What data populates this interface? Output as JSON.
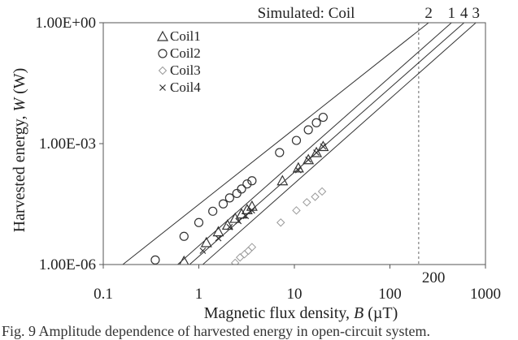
{
  "chart_data": {
    "type": "scatter",
    "x_scale": "log",
    "y_scale": "log",
    "xlim": [
      0.1,
      1000
    ],
    "ylim": [
      1e-06,
      1
    ],
    "xlabel_prefix": "Magnetic flux density, ",
    "xlabel_var": "B",
    "xlabel_unit": " (µT)",
    "ylabel_prefix": "Harvested energy, ",
    "ylabel_var": "W",
    "ylabel_unit": " (W)",
    "x_ticks": [
      "0.1",
      "1",
      "10",
      "100",
      "1000"
    ],
    "y_ticks": [
      "1.00E-06",
      "1.00E-03",
      "1.00E+00"
    ],
    "reference_line": {
      "x": 200,
      "label": "200"
    },
    "simulated_label": "Simulated: Coil",
    "series": [
      {
        "name": "Coil1",
        "marker": "triangle",
        "x": [
          0.7,
          1.2,
          1.6,
          2.0,
          2.4,
          2.8,
          3.2,
          3.6,
          7.5,
          11,
          14,
          17,
          20
        ],
        "y": [
          1.2e-06,
          3.5e-06,
          6.5e-06,
          9.5e-06,
          1.4e-05,
          1.8e-05,
          2.3e-05,
          2.8e-05,
          0.00012,
          0.00025,
          0.0004,
          0.0006,
          0.00085
        ]
      },
      {
        "name": "Coil2",
        "marker": "circle",
        "x": [
          0.35,
          0.7,
          1.0,
          1.4,
          1.8,
          2.1,
          2.5,
          2.8,
          3.2,
          3.6,
          7.0,
          10.5,
          14,
          17,
          20
        ],
        "y": [
          1.3e-06,
          5e-06,
          1.1e-05,
          2.1e-05,
          3.2e-05,
          4.5e-05,
          5.8e-05,
          7.5e-05,
          0.0001,
          0.00012,
          0.0006,
          0.0012,
          0.0022,
          0.0033,
          0.0045
        ]
      },
      {
        "name": "Coil3",
        "marker": "diamond",
        "x": [
          2.4,
          2.7,
          3.0,
          3.3,
          3.6,
          7.2,
          10.5,
          13.5,
          16.5,
          19.5
        ],
        "y": [
          1.1e-06,
          1.5e-06,
          1.8e-06,
          2.2e-06,
          2.7e-06,
          1.1e-05,
          2.2e-05,
          3.5e-05,
          4.8e-05,
          6.5e-05
        ]
      },
      {
        "name": "Coil4",
        "marker": "x",
        "x": [
          1.1,
          1.6,
          2.1,
          2.6,
          3.1,
          3.6,
          11,
          14,
          17,
          20
        ],
        "y": [
          2.2e-06,
          4.5e-06,
          8.5e-06,
          1.2e-05,
          1.6e-05,
          2.2e-05,
          0.00022,
          0.0004,
          0.0006,
          0.00085
        ]
      }
    ],
    "simulated_lines": [
      {
        "label": "2",
        "x": [
          0.16,
          254
        ],
        "y": [
          1e-06,
          1
        ]
      },
      {
        "label": "1",
        "x": [
          0.6,
          441
        ],
        "y": [
          1e-06,
          1
        ]
      },
      {
        "label": "4",
        "x": [
          0.8,
          597
        ],
        "y": [
          1e-06,
          1
        ]
      },
      {
        "label": "3",
        "x": [
          1.1,
          794
        ],
        "y": [
          1e-06,
          1
        ]
      }
    ]
  },
  "caption": "Fig. 9  Amplitude dependence of harvested energy in open-circuit system."
}
